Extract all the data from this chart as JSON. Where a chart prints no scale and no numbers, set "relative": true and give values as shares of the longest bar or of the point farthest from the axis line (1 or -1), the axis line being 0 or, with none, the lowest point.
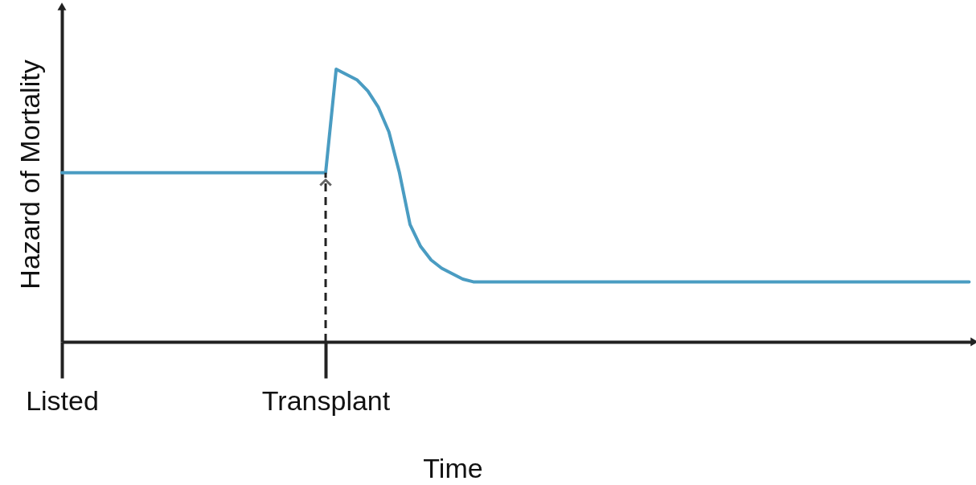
{
  "chart_data": {
    "type": "line",
    "xlabel": "Time",
    "ylabel": "Hazard of Mortality",
    "relative": true,
    "color": "#4a9cc2",
    "categories": [
      "Listed",
      null,
      null,
      null,
      null,
      null,
      null,
      null,
      null,
      null,
      null,
      null,
      null,
      null,
      null,
      null,
      null,
      null,
      null,
      null,
      null,
      null,
      null,
      null,
      null,
      "Transplant",
      null,
      null,
      null,
      null,
      null,
      null,
      null,
      null,
      null,
      null,
      null,
      null,
      null,
      null,
      null,
      null,
      null,
      null,
      null,
      null,
      null,
      null,
      null,
      null,
      null,
      null,
      null,
      null,
      null,
      null,
      null,
      null,
      null,
      null,
      null,
      null,
      null,
      null,
      null,
      null,
      null,
      null,
      null,
      null,
      null,
      null,
      null,
      null,
      null,
      null,
      null,
      null,
      null,
      null,
      null,
      null,
      null,
      null,
      null,
      null,
      null
    ],
    "values": [
      0.62,
      0.62,
      0.62,
      0.62,
      0.62,
      0.62,
      0.62,
      0.62,
      0.62,
      0.62,
      0.62,
      0.62,
      0.62,
      0.62,
      0.62,
      0.62,
      0.62,
      0.62,
      0.62,
      0.62,
      0.62,
      0.62,
      0.62,
      0.62,
      0.62,
      0.62,
      1,
      0.98,
      0.96,
      0.92,
      0.86,
      0.77,
      0.62,
      0.43,
      0.35,
      0.3,
      0.27,
      0.25,
      0.23,
      0.22,
      0.22,
      0.22,
      0.22,
      0.22,
      0.22,
      0.22,
      0.22,
      0.22,
      0.22,
      0.22,
      0.22,
      0.22,
      0.22,
      0.22,
      0.22,
      0.22,
      0.22,
      0.22,
      0.22,
      0.22,
      0.22,
      0.22,
      0.22,
      0.22,
      0.22,
      0.22,
      0.22,
      0.22,
      0.22,
      0.22,
      0.22,
      0.22,
      0.22,
      0.22,
      0.22,
      0.22,
      0.22,
      0.22,
      0.22,
      0.22,
      0.22,
      0.22,
      0.22,
      0.22,
      0.22,
      0.22,
      0.22
    ]
  }
}
